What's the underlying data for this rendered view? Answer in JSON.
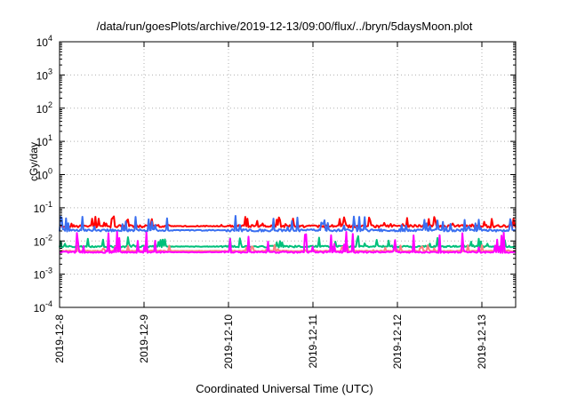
{
  "chart_data": {
    "type": "line",
    "title": "/data/run/goesPlots/archive/2019-12-13/09:00/flux/../bryn/5daysMoon.plot",
    "xlabel": "Coordinated Universal Time (UTC)",
    "ylabel": "cGy/day",
    "yscale": "log",
    "ylim": [
      0.0001,
      10000
    ],
    "yticks": [
      {
        "base": "10",
        "exp": "-4",
        "value": 0.0001
      },
      {
        "base": "10",
        "exp": "-3",
        "value": 0.001
      },
      {
        "base": "10",
        "exp": "-2",
        "value": 0.01
      },
      {
        "base": "10",
        "exp": "-1",
        "value": 0.1
      },
      {
        "base": "10",
        "exp": "0",
        "value": 1
      },
      {
        "base": "10",
        "exp": "1",
        "value": 10
      },
      {
        "base": "10",
        "exp": "2",
        "value": 100
      },
      {
        "base": "10",
        "exp": "3",
        "value": 1000
      },
      {
        "base": "10",
        "exp": "4",
        "value": 10000
      }
    ],
    "xlim": [
      "2019-12-08",
      "2019-12-13T09:00"
    ],
    "xticks": [
      "2019-12-8",
      "2019-12-9",
      "2019-12-10",
      "2019-12-11",
      "2019-12-12",
      "2019-12-13"
    ],
    "grid": true,
    "series": [
      {
        "color": "#ff0000",
        "baseline": 0.028,
        "noise": 0.18,
        "spikes": 0.32
      },
      {
        "color": "#3a6ff0",
        "baseline": 0.021,
        "noise": 0.16,
        "spikes": 0.42
      },
      {
        "color": "#00c07a",
        "baseline": 0.0068,
        "noise": 0.12,
        "spikes": 0.3
      },
      {
        "color": "#ff8080",
        "baseline": 0.005,
        "noise": 0.06,
        "spikes": 0.18
      },
      {
        "color": "#ff00ff",
        "baseline": 0.0046,
        "noise": 0.1,
        "spikes": 0.62
      }
    ]
  }
}
